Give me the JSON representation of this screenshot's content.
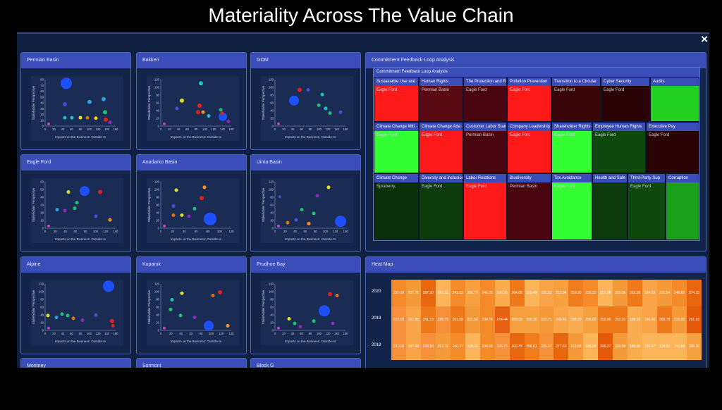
{
  "title": "Materiality Across The Value Chain",
  "close_icon": "×",
  "scatter_common": {
    "x_label": "Impacts on the Business: Outside-In",
    "y_label": "Stakeholder Perspective"
  },
  "scatter_panels": [
    {
      "title": "Permian Basin",
      "xt": [
        "0",
        "20",
        "40",
        "60",
        "80",
        "100",
        "120",
        "140",
        "160"
      ],
      "yt": [
        "0",
        "10",
        "20",
        "30",
        "40",
        "50",
        "60",
        "70",
        "80"
      ],
      "pts": [
        [
          0.3,
          0.92,
          8,
          "#1e50ff"
        ],
        [
          0.28,
          0.47,
          3,
          "#4a4adc"
        ],
        [
          0.63,
          0.52,
          3,
          "#2aa0d8"
        ],
        [
          0.83,
          0.58,
          3,
          "#2aa0d8"
        ],
        [
          0.85,
          0.3,
          3,
          "#20c070"
        ],
        [
          0.28,
          0.18,
          2.5,
          "#20c0c0"
        ],
        [
          0.38,
          0.18,
          2.5,
          "#20c0c0"
        ],
        [
          0.5,
          0.18,
          2.5,
          "#e0e020"
        ],
        [
          0.6,
          0.18,
          2.5,
          "#e07010"
        ],
        [
          0.72,
          0.17,
          2.5,
          "#ffd000"
        ],
        [
          0.86,
          0.14,
          3,
          "#e02020"
        ],
        [
          0.92,
          0.08,
          2.5,
          "#8a2ab8"
        ],
        [
          0.05,
          0.05,
          2,
          "#c040c0"
        ]
      ]
    },
    {
      "title": "Bakken",
      "xt": [
        "0",
        "20",
        "40",
        "60",
        "80",
        "100",
        "120",
        "140",
        "160"
      ],
      "yt": [
        "0",
        "20",
        "40",
        "60",
        "80",
        "100",
        "120"
      ],
      "pts": [
        [
          0.57,
          0.92,
          3,
          "#20c0c0"
        ],
        [
          0.3,
          0.55,
          3,
          "#e0e020"
        ],
        [
          0.55,
          0.44,
          3,
          "#e02020"
        ],
        [
          0.53,
          0.3,
          3,
          "#e02020"
        ],
        [
          0.23,
          0.38,
          2.5,
          "#4a4adc"
        ],
        [
          0.68,
          0.22,
          2.5,
          "#20c0c0"
        ],
        [
          0.6,
          0.3,
          2.5,
          "#ff9020"
        ],
        [
          0.88,
          0.2,
          6,
          "#1e50ff"
        ],
        [
          0.85,
          0.35,
          2.5,
          "#20c070"
        ],
        [
          0.87,
          0.28,
          2.5,
          "#e02020"
        ],
        [
          0.96,
          0.1,
          2.5,
          "#8a2ab8"
        ],
        [
          0.05,
          0.05,
          2,
          "#c040c0"
        ]
      ]
    },
    {
      "title": "GOM",
      "xt": [
        "0",
        "20",
        "40",
        "60",
        "80",
        "100",
        "120",
        "140",
        "160"
      ],
      "yt": [
        "0",
        "20",
        "40",
        "60",
        "80",
        "100",
        "120"
      ],
      "pts": [
        [
          0.27,
          0.55,
          7,
          "#1e50ff"
        ],
        [
          0.35,
          0.78,
          3,
          "#e02020"
        ],
        [
          0.47,
          0.78,
          2.5,
          "#4a4adc"
        ],
        [
          0.67,
          0.68,
          2.5,
          "#20c0c0"
        ],
        [
          0.62,
          0.45,
          2.5,
          "#20c070"
        ],
        [
          0.72,
          0.38,
          2.5,
          "#20c0c0"
        ],
        [
          0.78,
          0.28,
          2.5,
          "#20c070"
        ],
        [
          0.93,
          0.3,
          2.5,
          "#4a4adc"
        ],
        [
          0.05,
          0.05,
          2,
          "#c040c0"
        ]
      ]
    },
    {
      "title": "Eagle Ford",
      "xt": [
        "0",
        "20",
        "40",
        "60",
        "80",
        "100",
        "120",
        "140"
      ],
      "yt": [
        "0",
        "10",
        "20",
        "30",
        "40",
        "50",
        "60"
      ],
      "pts": [
        [
          0.56,
          0.8,
          7,
          "#1e50ff"
        ],
        [
          0.33,
          0.78,
          2.5,
          "#e0e020"
        ],
        [
          0.78,
          0.78,
          3,
          "#e02020"
        ],
        [
          0.45,
          0.55,
          2.5,
          "#20c070"
        ],
        [
          0.42,
          0.43,
          2.5,
          "#20c070"
        ],
        [
          0.17,
          0.4,
          2.5,
          "#2aa0d8"
        ],
        [
          0.28,
          0.38,
          2.5,
          "#8a2ab8"
        ],
        [
          0.72,
          0.26,
          2.5,
          "#4a4adc"
        ],
        [
          0.92,
          0.18,
          2.5,
          "#ff9020"
        ],
        [
          0.05,
          0.05,
          2,
          "#c040c0"
        ]
      ]
    },
    {
      "title": "Anadarko Basin",
      "xt": [
        "0",
        "20",
        "40",
        "60",
        "80",
        "100",
        "120"
      ],
      "yt": [
        "0",
        "20",
        "40",
        "60",
        "80",
        "100",
        "120"
      ],
      "pts": [
        [
          0.62,
          0.88,
          2.5,
          "#ff9020"
        ],
        [
          0.22,
          0.82,
          2.5,
          "#e0e020"
        ],
        [
          0.58,
          0.65,
          3,
          "#e02020"
        ],
        [
          0.7,
          0.2,
          9,
          "#1e50ff"
        ],
        [
          0.48,
          0.42,
          2.5,
          "#20c070"
        ],
        [
          0.18,
          0.48,
          2.5,
          "#4a4adc"
        ],
        [
          0.4,
          0.26,
          2.5,
          "#8a2ab8"
        ],
        [
          0.18,
          0.28,
          2.5,
          "#e07010"
        ],
        [
          0.3,
          0.28,
          2.5,
          "#e0e020"
        ],
        [
          0.05,
          0.05,
          2,
          "#c040c0"
        ]
      ]
    },
    {
      "title": "Uinta Basin",
      "xt": [
        "0",
        "20",
        "40",
        "60",
        "80",
        "100",
        "120",
        "140"
      ],
      "yt": [
        "0",
        "20",
        "40",
        "60",
        "80",
        "100",
        "120"
      ],
      "pts": [
        [
          0.76,
          0.88,
          2.5,
          "#e0e020"
        ],
        [
          0.6,
          0.7,
          2.5,
          "#8a2ab8"
        ],
        [
          0.07,
          0.68,
          2,
          "#4a4adc"
        ],
        [
          0.38,
          0.4,
          2.5,
          "#20c070"
        ],
        [
          0.55,
          0.32,
          2.5,
          "#20c070"
        ],
        [
          0.93,
          0.15,
          8,
          "#1e50ff"
        ],
        [
          0.3,
          0.18,
          2.5,
          "#4a4adc"
        ],
        [
          0.18,
          0.12,
          2.5,
          "#e07010"
        ],
        [
          0.48,
          0.1,
          2.5,
          "#ff9020"
        ],
        [
          0.05,
          0.05,
          2,
          "#c040c0"
        ]
      ]
    },
    {
      "title": "Alpine",
      "xt": [
        "0",
        "20",
        "40",
        "60",
        "80",
        "100",
        "120",
        "140",
        "160"
      ],
      "yt": [
        "0",
        "20",
        "40",
        "60",
        "80",
        "100",
        "120"
      ],
      "pts": [
        [
          0.9,
          0.95,
          8,
          "#1e50ff"
        ],
        [
          0.04,
          0.32,
          2.5,
          "#e0e020"
        ],
        [
          0.16,
          0.28,
          2.5,
          "#2aa0d8"
        ],
        [
          0.24,
          0.35,
          2.5,
          "#20c070"
        ],
        [
          0.32,
          0.32,
          2.5,
          "#20c070"
        ],
        [
          0.4,
          0.26,
          2.5,
          "#e07010"
        ],
        [
          0.53,
          0.22,
          2.5,
          "#8a2ab8"
        ],
        [
          0.72,
          0.33,
          2.5,
          "#4a4adc"
        ],
        [
          0.95,
          0.2,
          3,
          "#e02020"
        ],
        [
          0.96,
          0.1,
          2.5,
          "#e02020"
        ],
        [
          0.05,
          0.05,
          2,
          "#c040c0"
        ]
      ]
    },
    {
      "title": "Kuparuk",
      "xt": [
        "0",
        "20",
        "40",
        "60",
        "80",
        "100",
        "120",
        "140"
      ],
      "yt": [
        "0",
        "20",
        "40",
        "60",
        "80",
        "100",
        "120"
      ],
      "pts": [
        [
          0.84,
          0.82,
          3,
          "#e02020"
        ],
        [
          0.74,
          0.75,
          2.5,
          "#e07010"
        ],
        [
          0.3,
          0.8,
          2.5,
          "#e0e020"
        ],
        [
          0.16,
          0.66,
          2.5,
          "#20c0c0"
        ],
        [
          0.14,
          0.45,
          2.5,
          "#20c070"
        ],
        [
          0.28,
          0.32,
          2.5,
          "#20c070"
        ],
        [
          0.48,
          0.28,
          2.5,
          "#8a2ab8"
        ],
        [
          0.68,
          0.1,
          7,
          "#1e50ff"
        ],
        [
          0.95,
          0.1,
          2.5,
          "#ff9020"
        ],
        [
          0.05,
          0.05,
          2,
          "#c040c0"
        ]
      ]
    },
    {
      "title": "Prudhoe Bay",
      "xt": [
        "0",
        "20",
        "40",
        "60",
        "80",
        "100",
        "120",
        "140",
        "160"
      ],
      "yt": [
        "0",
        "20",
        "40",
        "60",
        "80",
        "100",
        "120"
      ],
      "pts": [
        [
          0.78,
          0.78,
          3,
          "#e02020"
        ],
        [
          0.88,
          0.75,
          2.5,
          "#e07010"
        ],
        [
          0.7,
          0.42,
          8,
          "#1e50ff"
        ],
        [
          0.2,
          0.25,
          2.5,
          "#e0e020"
        ],
        [
          0.28,
          0.15,
          2.5,
          "#20c070"
        ],
        [
          0.55,
          0.2,
          2.5,
          "#20c070"
        ],
        [
          0.82,
          0.15,
          2.5,
          "#8a2ab8"
        ],
        [
          0.36,
          0.08,
          2.5,
          "#8a2ab8"
        ],
        [
          0.05,
          0.05,
          2,
          "#c040c0"
        ]
      ]
    }
  ],
  "bottom_tabs": [
    "Montney",
    "Surmont",
    "Block G"
  ],
  "treemap": {
    "panel_title": "Commitment Feedback Loop Analysis",
    "inner_title": "Commitment Feedback Loop Analysis",
    "tiles": [
      {
        "label": "Sustainable Use and",
        "sub": "Eagle Ford",
        "c": "#ff1a1a"
      },
      {
        "label": "Human Rights",
        "sub": "Permian Basin",
        "c": "#5a0a12"
      },
      {
        "label": "The Protection and R",
        "sub": "Eagle Ford",
        "c": "#4a0610"
      },
      {
        "label": "Pollution Prevention",
        "sub": "Eagle Ford",
        "c": "#ff1a1a"
      },
      {
        "label": "Transition to a Circular",
        "sub": "Eagle Ford",
        "c": "#3a0508"
      },
      {
        "label": "Cyber Security",
        "sub": "Eagle Ford",
        "c": "#2a0306"
      },
      {
        "label": "Audits",
        "sub": "",
        "c": "#22d022"
      },
      {
        "label": "Climate Change Miti",
        "sub": "Eagle Ford",
        "c": "#33ff33"
      },
      {
        "label": "Climate Change Ada",
        "sub": "Eagle Ford",
        "c": "#ff1a1a"
      },
      {
        "label": "Customer Labor Stan",
        "sub": "Permian Basin",
        "c": "#4a0610"
      },
      {
        "label": "Company Leadership",
        "sub": "Eagle Ford",
        "c": "#ff1a1a"
      },
      {
        "label": "Shareholder Rights",
        "sub": "Eagle Ford",
        "c": "#33ff33"
      },
      {
        "label": "Employee Human Rights",
        "sub": "Eagle Ford",
        "c": "#0e4a0e"
      },
      {
        "label": "Executive Pay",
        "sub": "Eagle Ford",
        "c": "#2a0306"
      },
      {
        "label": "Climate Change",
        "sub": "Spraberry,",
        "c": "#0a300a"
      },
      {
        "label": "Diversity and Inclusion",
        "sub": "Eagle Ford",
        "c": "#0c3a0c"
      },
      {
        "label": "Labor Relations",
        "sub": "Eagle Ford",
        "c": "#ff1a1a"
      },
      {
        "label": "Biodiversity",
        "sub": "Permian Basin",
        "c": "#4a0610"
      },
      {
        "label": "Tax Avoidance",
        "sub": "Eagle Ford",
        "c": "#33ff33"
      },
      {
        "label": "Health and Safe",
        "sub": "",
        "c": "#0c3a0c"
      },
      {
        "label": "Third-Party Sup",
        "sub": "Eagle Ford",
        "c": "#0e4a0e"
      },
      {
        "label": "Corruption",
        "sub": "",
        "c": "#1aa01a"
      }
    ]
  },
  "heatmap": {
    "panel_title": "Heat Map",
    "years": [
      "2020",
      "2019",
      "2018"
    ],
    "rows": [
      [
        "237.60",
        "217.75",
        "287.30",
        "161.11",
        "241.03",
        "206.77",
        "246.20",
        "196.38",
        "264.05",
        "169.49",
        "191.92",
        "212.94",
        "259.90",
        "230.31",
        "157.28",
        "223.98",
        "262.99",
        "184.03",
        "221.54",
        "246.85",
        "274.15"
      ],
      [
        "227.00",
        "191.85",
        "261.13",
        "228.75",
        "261.06",
        "221.56",
        "234.76",
        "274.44",
        "203.09",
        "205.30",
        "220.71",
        "190.41",
        "188.50",
        "206.00",
        "262.60",
        "262.51",
        "189.21",
        "190.46",
        "268.78",
        "215.03",
        "291.93"
      ],
      [
        "231.00",
        "197.68",
        "228.50",
        "213.72",
        "240.97",
        "178.33",
        "234.55",
        "226.70",
        "283.33",
        "258.61",
        "225.07",
        "277.63",
        "213.55",
        "165.24",
        "295.27",
        "220.99",
        "189.36",
        "180.67",
        "178.37",
        "157.54",
        "208.20"
      ]
    ],
    "colors": [
      [
        "#f58a28",
        "#f59a38",
        "#e8660e",
        "#fbb45a",
        "#f58a28",
        "#f7a040",
        "#f58a28",
        "#fbab50",
        "#ef7818",
        "#fbb45a",
        "#f9a448",
        "#f7a040",
        "#f07c1c",
        "#f58a28",
        "#fbb45a",
        "#f59a38",
        "#ef7818",
        "#f9a448",
        "#f59a38",
        "#f58a28",
        "#e8660e"
      ],
      [
        "#f7903a",
        "#f9a448",
        "#ef7818",
        "#f7903a",
        "#ef7818",
        "#f59a38",
        "#f58a28",
        "#e66212",
        "#f7a040",
        "#f7a040",
        "#f59a38",
        "#f9a448",
        "#fbab50",
        "#f7a040",
        "#ef7818",
        "#ef7818",
        "#fbab50",
        "#f9a448",
        "#ef7818",
        "#f59a38",
        "#e25a0a"
      ],
      [
        "#f7903a",
        "#f9a448",
        "#f7903a",
        "#f59a38",
        "#f58a28",
        "#fbb45a",
        "#f58a28",
        "#f7903a",
        "#e8660e",
        "#f07c1c",
        "#f7903a",
        "#e8660e",
        "#f59a38",
        "#fbb45a",
        "#e25a0a",
        "#f59a38",
        "#fbab50",
        "#fbb45a",
        "#fbb45a",
        "#fbb45a",
        "#f7a040"
      ]
    ]
  }
}
